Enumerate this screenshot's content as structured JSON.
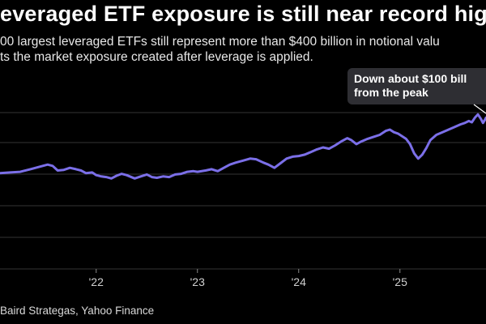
{
  "header": {
    "title": "everaged ETF exposure is still near record hig",
    "subtitle_line1": "00 largest leveraged ETFs still represent more than $400 billion in notional valu",
    "subtitle_line2": "ts the market exposure created after leverage is applied."
  },
  "footer": {
    "source": " Baird Strategas, Yahoo Finance"
  },
  "colors": {
    "line": "#7b6fe8",
    "background": "#000000",
    "grid": "#333333",
    "annotation_box": "#2e2e33"
  },
  "chart_data": {
    "type": "line",
    "title": "everaged ETF exposure is still near record hig",
    "xlabel": "",
    "ylabel": "",
    "x_ticks": [
      "'22",
      "'23",
      "'24",
      "'25"
    ],
    "x_tick_values": [
      2022,
      2023,
      2024,
      2025
    ],
    "xlim": [
      2021.05,
      2025.85
    ],
    "ylim": [
      0,
      1
    ],
    "grid": true,
    "y_tick_labels_visible": false,
    "series": [
      {
        "values": [
          [
            2021.05,
            0.48
          ],
          [
            2021.15,
            0.485
          ],
          [
            2021.25,
            0.49
          ],
          [
            2021.35,
            0.51
          ],
          [
            2021.45,
            0.53
          ],
          [
            2021.52,
            0.545
          ],
          [
            2021.57,
            0.535
          ],
          [
            2021.62,
            0.5
          ],
          [
            2021.68,
            0.505
          ],
          [
            2021.74,
            0.52
          ],
          [
            2021.8,
            0.51
          ],
          [
            2021.85,
            0.5
          ],
          [
            2021.9,
            0.48
          ],
          [
            2021.96,
            0.485
          ],
          [
            2022.0,
            0.465
          ],
          [
            2022.05,
            0.455
          ],
          [
            2022.1,
            0.45
          ],
          [
            2022.15,
            0.44
          ],
          [
            2022.2,
            0.46
          ],
          [
            2022.25,
            0.475
          ],
          [
            2022.3,
            0.465
          ],
          [
            2022.38,
            0.44
          ],
          [
            2022.44,
            0.455
          ],
          [
            2022.5,
            0.47
          ],
          [
            2022.55,
            0.45
          ],
          [
            2022.6,
            0.445
          ],
          [
            2022.66,
            0.455
          ],
          [
            2022.72,
            0.45
          ],
          [
            2022.78,
            0.47
          ],
          [
            2022.84,
            0.475
          ],
          [
            2022.9,
            0.49
          ],
          [
            2022.96,
            0.495
          ],
          [
            2023.0,
            0.49
          ],
          [
            2023.08,
            0.5
          ],
          [
            2023.14,
            0.51
          ],
          [
            2023.2,
            0.495
          ],
          [
            2023.26,
            0.52
          ],
          [
            2023.32,
            0.545
          ],
          [
            2023.38,
            0.56
          ],
          [
            2023.45,
            0.575
          ],
          [
            2023.52,
            0.59
          ],
          [
            2023.58,
            0.585
          ],
          [
            2023.65,
            0.56
          ],
          [
            2023.7,
            0.545
          ],
          [
            2023.76,
            0.52
          ],
          [
            2023.82,
            0.555
          ],
          [
            2023.88,
            0.59
          ],
          [
            2023.94,
            0.605
          ],
          [
            2024.0,
            0.61
          ],
          [
            2024.06,
            0.62
          ],
          [
            2024.12,
            0.64
          ],
          [
            2024.18,
            0.66
          ],
          [
            2024.24,
            0.675
          ],
          [
            2024.3,
            0.665
          ],
          [
            2024.36,
            0.69
          ],
          [
            2024.42,
            0.72
          ],
          [
            2024.48,
            0.745
          ],
          [
            2024.52,
            0.73
          ],
          [
            2024.57,
            0.7
          ],
          [
            2024.62,
            0.72
          ],
          [
            2024.68,
            0.74
          ],
          [
            2024.74,
            0.755
          ],
          [
            2024.8,
            0.77
          ],
          [
            2024.86,
            0.8
          ],
          [
            2024.9,
            0.81
          ],
          [
            2024.94,
            0.79
          ],
          [
            2024.98,
            0.78
          ],
          [
            2025.02,
            0.76
          ],
          [
            2025.06,
            0.74
          ],
          [
            2025.1,
            0.7
          ],
          [
            2025.14,
            0.63
          ],
          [
            2025.18,
            0.59
          ],
          [
            2025.22,
            0.62
          ],
          [
            2025.26,
            0.67
          ],
          [
            2025.3,
            0.73
          ],
          [
            2025.36,
            0.77
          ],
          [
            2025.42,
            0.79
          ],
          [
            2025.48,
            0.81
          ],
          [
            2025.54,
            0.83
          ],
          [
            2025.6,
            0.85
          ],
          [
            2025.64,
            0.86
          ],
          [
            2025.68,
            0.875
          ],
          [
            2025.71,
            0.865
          ],
          [
            2025.74,
            0.9
          ],
          [
            2025.77,
            0.925
          ],
          [
            2025.8,
            0.89
          ],
          [
            2025.82,
            0.86
          ],
          [
            2025.84,
            0.885
          ],
          [
            2025.85,
            0.9
          ]
        ]
      }
    ],
    "annotation": {
      "line1": "Down about $100 bill",
      "line2": "from the peak"
    }
  }
}
